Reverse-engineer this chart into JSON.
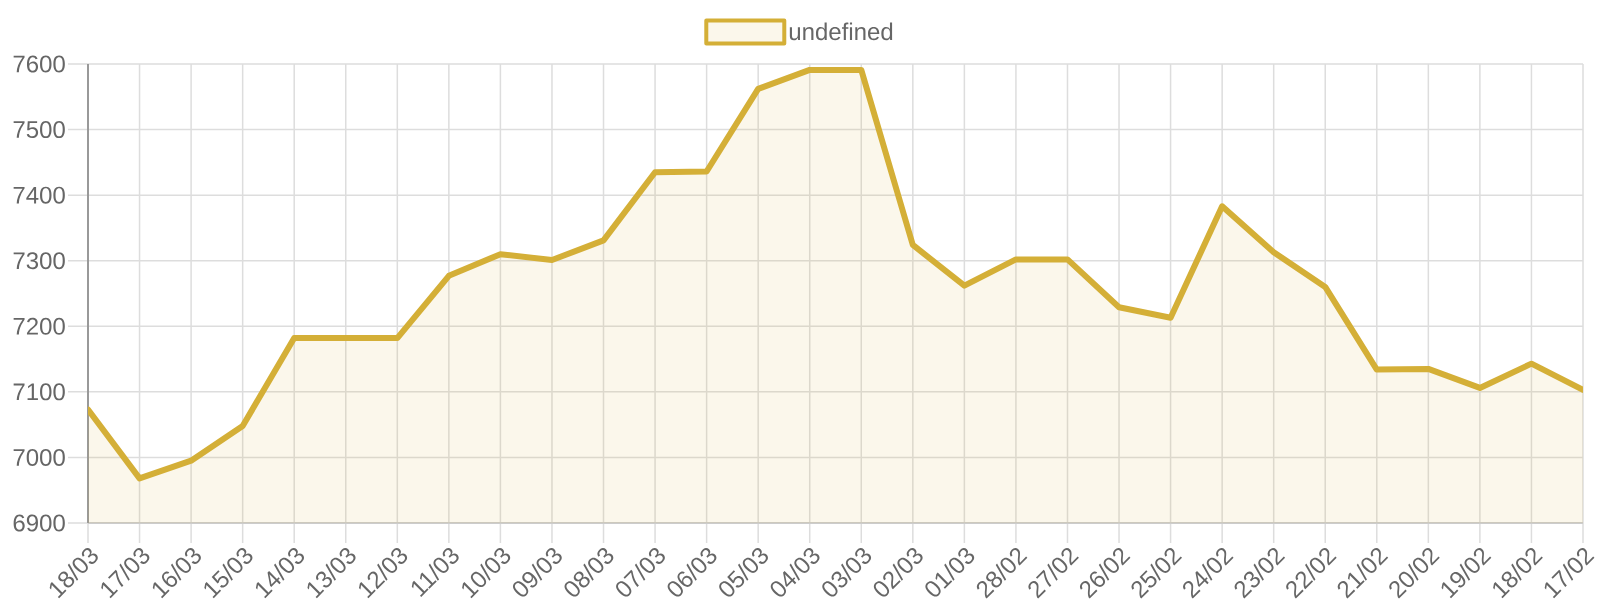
{
  "chart_data": {
    "type": "area",
    "categories": [
      "18/03",
      "17/03",
      "16/03",
      "15/03",
      "14/03",
      "13/03",
      "12/03",
      "11/03",
      "10/03",
      "09/03",
      "08/03",
      "07/03",
      "06/03",
      "05/03",
      "04/03",
      "03/03",
      "02/03",
      "01/03",
      "28/02",
      "27/02",
      "26/02",
      "25/02",
      "24/02",
      "23/02",
      "22/02",
      "21/02",
      "20/02",
      "19/02",
      "18/02",
      "17/02"
    ],
    "series": [
      {
        "name": "undefined",
        "color": "#d4af37",
        "values": [
          7073,
          6968,
          6995,
          7048,
          7182,
          7182,
          7182,
          7277,
          7310,
          7301,
          7331,
          7435,
          7436,
          7562,
          7591,
          7591,
          7324,
          7262,
          7302,
          7302,
          7229,
          7213,
          7383,
          7313,
          7260,
          7134,
          7135,
          7106,
          7143,
          7103
        ]
      }
    ],
    "ylim": [
      6900,
      7600
    ],
    "yticks": [
      6900,
      7000,
      7100,
      7200,
      7300,
      7400,
      7500,
      7600
    ],
    "grid": true,
    "legend": "top"
  }
}
